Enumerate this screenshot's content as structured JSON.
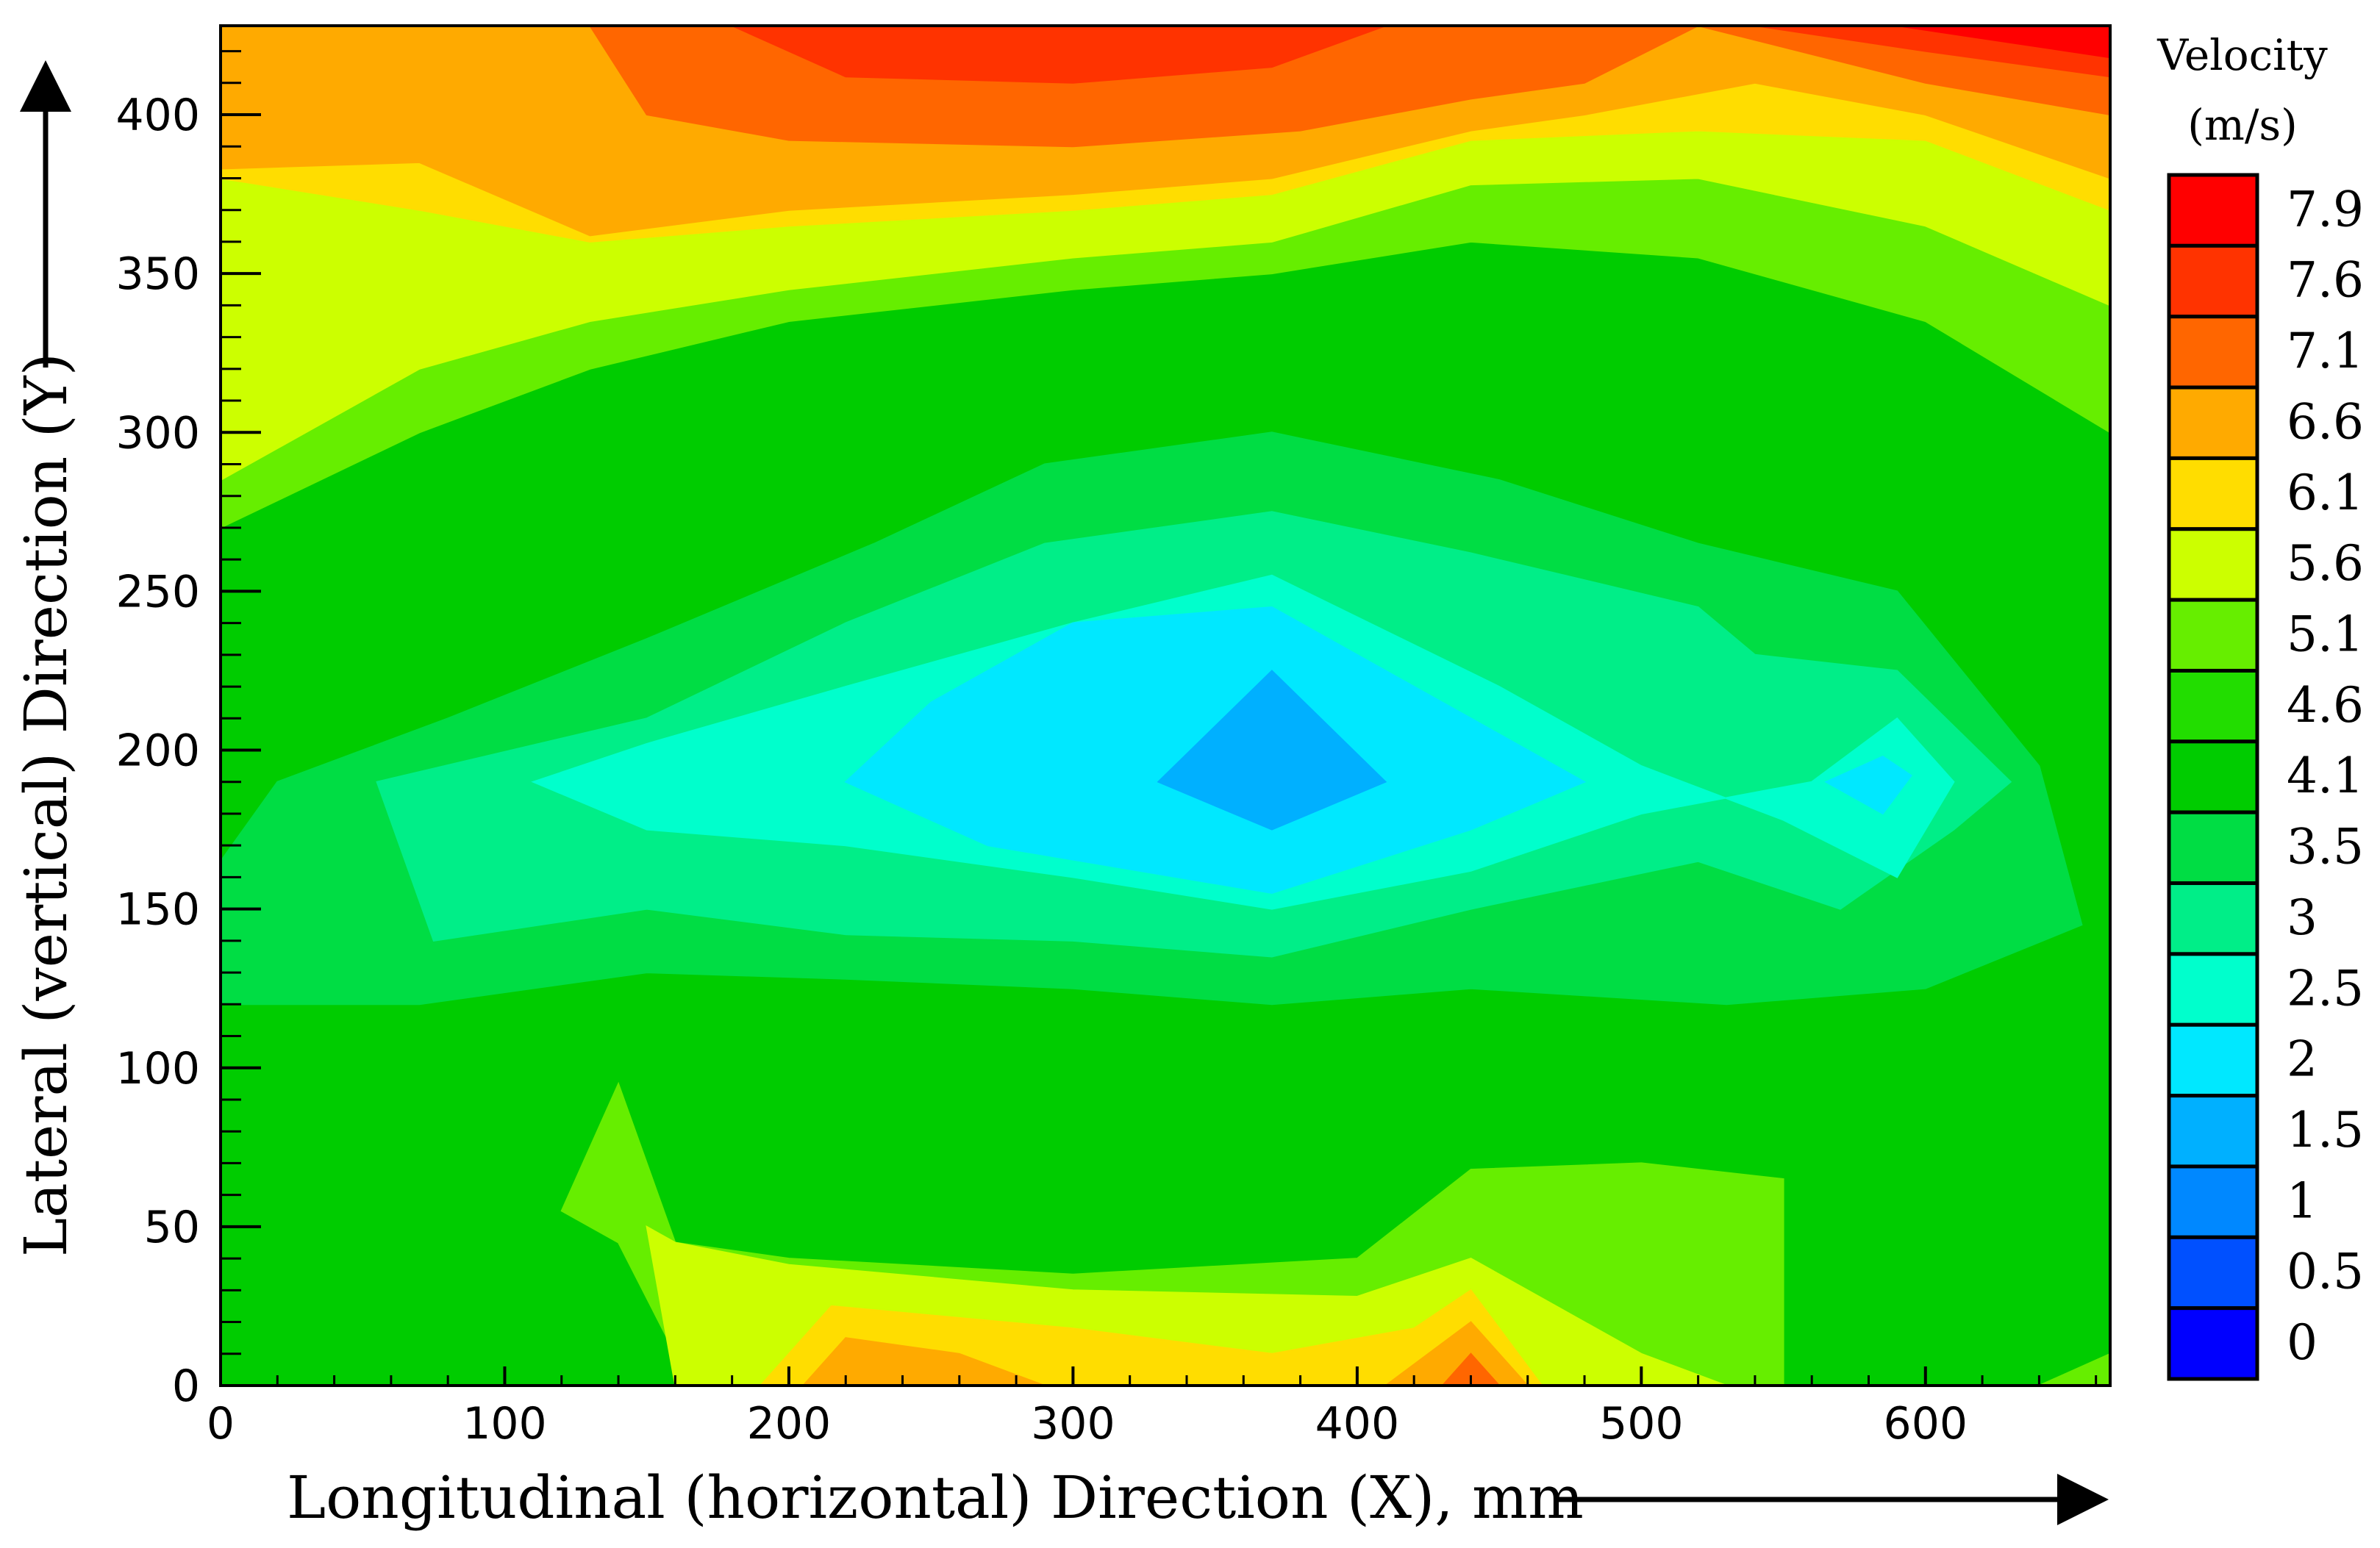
{
  "chart_data": {
    "type": "heatmap",
    "subtype": "filled-contour",
    "xlabel": "Longitudinal (horizontal) Direction  (X), mm",
    "ylabel": "Lateral (vertical) Direction (Y)",
    "xlim": [
      0,
      665
    ],
    "ylim": [
      0,
      428
    ],
    "x_ticks": [
      "0",
      "100",
      "200",
      "300",
      "400",
      "500",
      "600"
    ],
    "y_ticks": [
      "0",
      "50",
      "100",
      "150",
      "200",
      "250",
      "300",
      "350",
      "400"
    ],
    "x_tick_values": [
      0,
      100,
      200,
      300,
      400,
      500,
      600
    ],
    "y_tick_values": [
      0,
      50,
      100,
      150,
      200,
      250,
      300,
      350,
      400
    ],
    "colorbar": {
      "title_line1": "Velocity",
      "title_line2": "(m/s)",
      "labels": [
        "7.9",
        "7.6",
        "7.1",
        "6.6",
        "6.1",
        "5.6",
        "5.1",
        "4.6",
        "4.1",
        "3.5",
        "3",
        "2.5",
        "2",
        "1.5",
        "1",
        "0.5",
        "0"
      ],
      "colors": [
        "#ff0000",
        "#ff3300",
        "#ff6600",
        "#ffaa00",
        "#ffdd00",
        "#ccff00",
        "#66ee00",
        "#22dd00",
        "#00cc00",
        "#00dd44",
        "#00ee88",
        "#00ffcc",
        "#00e8ff",
        "#00b0ff",
        "#0088ff",
        "#0050ff",
        "#0000ff"
      ]
    },
    "grid": false,
    "regions": [
      {
        "level": "4.1",
        "color": "#00cc00",
        "polygon": [
          [
            0,
            0
          ],
          [
            665,
            0
          ],
          [
            665,
            428
          ],
          [
            0,
            428
          ]
        ]
      },
      {
        "level": "5.1",
        "color": "#66ee00",
        "polygon": [
          [
            0,
            428
          ],
          [
            665,
            428
          ],
          [
            665,
            300
          ],
          [
            600,
            335
          ],
          [
            520,
            355
          ],
          [
            440,
            360
          ],
          [
            370,
            350
          ],
          [
            300,
            345
          ],
          [
            200,
            335
          ],
          [
            130,
            320
          ],
          [
            70,
            300
          ],
          [
            0,
            270
          ]
        ]
      },
      {
        "level": "5.6",
        "color": "#ccff00",
        "polygon": [
          [
            0,
            428
          ],
          [
            665,
            428
          ],
          [
            665,
            340
          ],
          [
            600,
            365
          ],
          [
            520,
            380
          ],
          [
            440,
            378
          ],
          [
            370,
            360
          ],
          [
            300,
            355
          ],
          [
            200,
            345
          ],
          [
            130,
            335
          ],
          [
            70,
            320
          ],
          [
            0,
            285
          ]
        ]
      },
      {
        "level": "6.1",
        "color": "#ffdd00",
        "polygon": [
          [
            0,
            428
          ],
          [
            665,
            428
          ],
          [
            665,
            370
          ],
          [
            600,
            392
          ],
          [
            520,
            395
          ],
          [
            440,
            392
          ],
          [
            370,
            375
          ],
          [
            300,
            370
          ],
          [
            200,
            365
          ],
          [
            130,
            360
          ],
          [
            70,
            370
          ],
          [
            0,
            380
          ]
        ]
      },
      {
        "level": "6.6",
        "color": "#ffaa00",
        "polygon": [
          [
            0,
            428
          ],
          [
            665,
            428
          ],
          [
            665,
            380
          ],
          [
            600,
            400
          ],
          [
            540,
            410
          ],
          [
            480,
            400
          ],
          [
            440,
            395
          ],
          [
            370,
            380
          ],
          [
            300,
            375
          ],
          [
            200,
            370
          ],
          [
            130,
            362
          ],
          [
            70,
            385
          ],
          [
            0,
            383
          ]
        ]
      },
      {
        "level": "7.1",
        "color": "#ff6600",
        "polygon": [
          [
            130,
            428
          ],
          [
            520,
            428
          ],
          [
            480,
            410
          ],
          [
            440,
            405
          ],
          [
            380,
            395
          ],
          [
            300,
            390
          ],
          [
            200,
            392
          ],
          [
            150,
            400
          ]
        ]
      },
      {
        "level": "7.1",
        "color": "#ff6600",
        "polygon": [
          [
            520,
            428
          ],
          [
            665,
            428
          ],
          [
            665,
            400
          ],
          [
            600,
            410
          ]
        ]
      },
      {
        "level": "7.6",
        "color": "#ff3300",
        "polygon": [
          [
            180,
            428
          ],
          [
            410,
            428
          ],
          [
            370,
            415
          ],
          [
            300,
            410
          ],
          [
            220,
            412
          ]
        ]
      },
      {
        "level": "7.6",
        "color": "#ff3300",
        "polygon": [
          [
            540,
            428
          ],
          [
            665,
            428
          ],
          [
            665,
            412
          ],
          [
            600,
            420
          ]
        ]
      },
      {
        "level": "7.9",
        "color": "#ff0000",
        "polygon": [
          [
            590,
            428
          ],
          [
            665,
            428
          ],
          [
            665,
            418
          ]
        ]
      },
      {
        "level": "3.5",
        "color": "#00dd44",
        "polygon": [
          [
            0,
            120
          ],
          [
            0,
            165
          ],
          [
            20,
            190
          ],
          [
            80,
            210
          ],
          [
            150,
            235
          ],
          [
            230,
            265
          ],
          [
            290,
            290
          ],
          [
            370,
            300
          ],
          [
            450,
            285
          ],
          [
            520,
            265
          ],
          [
            590,
            250
          ],
          [
            640,
            195
          ],
          [
            655,
            145
          ],
          [
            600,
            125
          ],
          [
            530,
            120
          ],
          [
            440,
            125
          ],
          [
            370,
            120
          ],
          [
            300,
            125
          ],
          [
            220,
            128
          ],
          [
            150,
            130
          ],
          [
            70,
            120
          ]
        ]
      },
      {
        "level": "3",
        "color": "#00ee88",
        "polygon": [
          [
            55,
            190
          ],
          [
            75,
            140
          ],
          [
            150,
            150
          ],
          [
            220,
            142
          ],
          [
            300,
            140
          ],
          [
            370,
            135
          ],
          [
            440,
            150
          ],
          [
            520,
            165
          ],
          [
            570,
            150
          ],
          [
            610,
            175
          ],
          [
            630,
            190
          ],
          [
            590,
            225
          ],
          [
            540,
            230
          ],
          [
            520,
            245
          ],
          [
            440,
            262
          ],
          [
            370,
            275
          ],
          [
            290,
            265
          ],
          [
            220,
            240
          ],
          [
            150,
            210
          ]
        ]
      },
      {
        "level": "2.5",
        "color": "#00ffcc",
        "polygon": [
          [
            110,
            190
          ],
          [
            150,
            175
          ],
          [
            220,
            170
          ],
          [
            300,
            160
          ],
          [
            370,
            150
          ],
          [
            440,
            162
          ],
          [
            500,
            180
          ],
          [
            560,
            190
          ],
          [
            590,
            210
          ],
          [
            610,
            190
          ],
          [
            590,
            160
          ],
          [
            550,
            178
          ],
          [
            500,
            195
          ],
          [
            450,
            220
          ],
          [
            370,
            255
          ],
          [
            300,
            240
          ],
          [
            220,
            220
          ],
          [
            150,
            202
          ]
        ]
      },
      {
        "level": "2",
        "color": "#00e8ff",
        "polygon": [
          [
            220,
            190
          ],
          [
            270,
            170
          ],
          [
            370,
            155
          ],
          [
            440,
            175
          ],
          [
            480,
            190
          ],
          [
            440,
            210
          ],
          [
            370,
            245
          ],
          [
            300,
            240
          ],
          [
            250,
            215
          ]
        ]
      },
      {
        "level": "2",
        "color": "#00e8ff",
        "polygon": [
          [
            565,
            190
          ],
          [
            585,
            180
          ],
          [
            595,
            192
          ],
          [
            585,
            198
          ]
        ]
      },
      {
        "level": "1.5",
        "color": "#00b0ff",
        "polygon": [
          [
            330,
            190
          ],
          [
            370,
            175
          ],
          [
            410,
            190
          ],
          [
            370,
            225
          ]
        ]
      },
      {
        "level": "5.1",
        "color": "#66ee00",
        "polygon": [
          [
            140,
            45
          ],
          [
            160,
            10
          ],
          [
            200,
            0
          ],
          [
            550,
            0
          ],
          [
            550,
            65
          ],
          [
            500,
            70
          ],
          [
            440,
            68
          ],
          [
            400,
            40
          ],
          [
            300,
            35
          ],
          [
            200,
            40
          ],
          [
            160,
            45
          ],
          [
            140,
            95
          ],
          [
            120,
            55
          ]
        ]
      },
      {
        "level": "5.6",
        "color": "#ccff00",
        "polygon": [
          [
            150,
            50
          ],
          [
            160,
            0
          ],
          [
            530,
            0
          ],
          [
            500,
            10
          ],
          [
            440,
            40
          ],
          [
            400,
            28
          ],
          [
            300,
            30
          ],
          [
            200,
            38
          ],
          [
            160,
            45
          ]
        ]
      },
      {
        "level": "6.1",
        "color": "#ffdd00",
        "polygon": [
          [
            190,
            0
          ],
          [
            215,
            25
          ],
          [
            300,
            18
          ],
          [
            370,
            10
          ],
          [
            420,
            18
          ],
          [
            440,
            30
          ],
          [
            465,
            0
          ]
        ]
      },
      {
        "level": "6.6",
        "color": "#ffaa00",
        "polygon": [
          [
            205,
            0
          ],
          [
            220,
            15
          ],
          [
            260,
            10
          ],
          [
            290,
            0
          ]
        ]
      },
      {
        "level": "6.6",
        "color": "#ffaa00",
        "polygon": [
          [
            410,
            0
          ],
          [
            440,
            20
          ],
          [
            460,
            0
          ]
        ]
      },
      {
        "level": "7.1",
        "color": "#ff6600",
        "polygon": [
          [
            430,
            0
          ],
          [
            440,
            10
          ],
          [
            450,
            0
          ]
        ]
      },
      {
        "level": "5.1",
        "color": "#66ee00",
        "polygon": [
          [
            640,
            0
          ],
          [
            665,
            0
          ],
          [
            665,
            10
          ]
        ]
      }
    ]
  }
}
